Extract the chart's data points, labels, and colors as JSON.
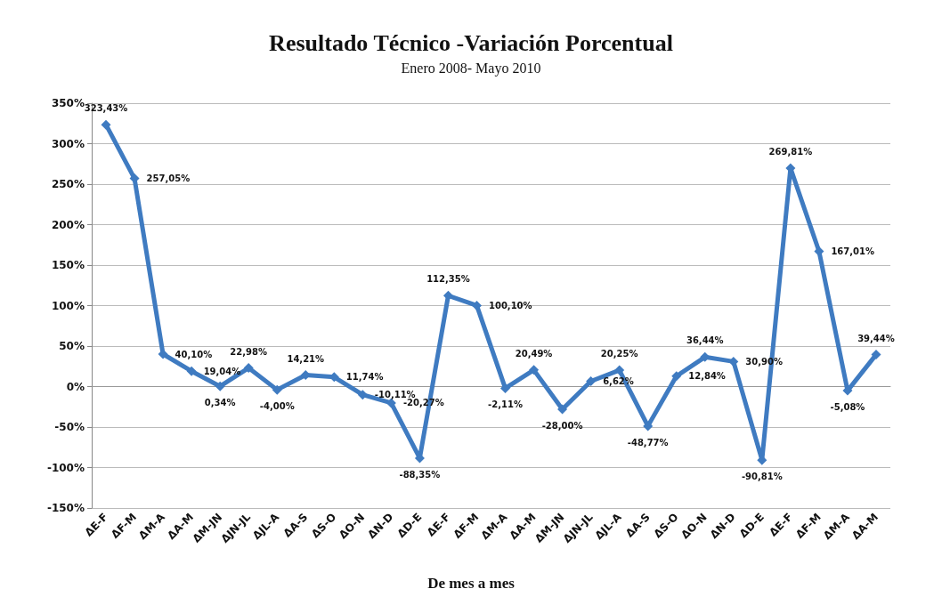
{
  "chart_data": {
    "type": "line",
    "title": "Resultado Técnico -Variación Porcentual",
    "subtitle": "Enero 2008- Mayo 2010",
    "xlabel": "De mes a mes",
    "categories": [
      "ΔE-F",
      "ΔF-M",
      "ΔM-A",
      "ΔA-M",
      "ΔM-JN",
      "ΔJN-JL",
      "ΔJL-A",
      "ΔA-S",
      "ΔS-O",
      "ΔO-N",
      "ΔN-D",
      "ΔD-E",
      "ΔE-F",
      "ΔF-M",
      "ΔM-A",
      "ΔA-M",
      "ΔM-JN",
      "ΔJN-JL",
      "ΔJL-A",
      "ΔA-S",
      "ΔS-O",
      "ΔO-N",
      "ΔN-D",
      "ΔD-E",
      "ΔE-F",
      "ΔF-M",
      "ΔM-A",
      "ΔA-M"
    ],
    "series": [
      {
        "color": "#3f7bc1",
        "values": [
          323.43,
          257.05,
          40.1,
          19.04,
          0.34,
          22.98,
          -4.0,
          14.21,
          11.74,
          -10.11,
          -20.27,
          -88.35,
          112.35,
          100.1,
          -2.11,
          20.49,
          -28.0,
          6.62,
          20.25,
          -48.77,
          12.84,
          36.44,
          30.9,
          -90.81,
          269.81,
          167.01,
          -5.08,
          39.44
        ],
        "value_labels": [
          "323,43%",
          "257,05%",
          "40,10%",
          "19,04%",
          "0,34%",
          "22,98%",
          "-4,00%",
          "14,21%",
          "11,74%",
          "-10,11%",
          "-20,27%",
          "-88,35%",
          "112,35%",
          "100,10%",
          "-2,11%",
          "20,49%",
          "-28,00%",
          "6,62%",
          "20,25%",
          "-48,77%",
          "12,84%",
          "36,44%",
          "30,90%",
          "-90,81%",
          "269,81%",
          "167,01%",
          "-5,08%",
          "39,44%"
        ]
      }
    ],
    "ylim": [
      -150,
      350
    ],
    "yticks": [
      {
        "value": -150,
        "label": "-150%"
      },
      {
        "value": -100,
        "label": "-100%"
      },
      {
        "value": -50,
        "label": "-50%"
      },
      {
        "value": 0,
        "label": "0%"
      },
      {
        "value": 50,
        "label": "50%"
      },
      {
        "value": 100,
        "label": "100%"
      },
      {
        "value": 150,
        "label": "150%"
      },
      {
        "value": 200,
        "label": "200%"
      },
      {
        "value": 250,
        "label": "250%"
      },
      {
        "value": 300,
        "label": "300%"
      },
      {
        "value": 350,
        "label": "350%"
      }
    ],
    "grid": "y",
    "marker": "diamond",
    "line_style": "solid"
  }
}
